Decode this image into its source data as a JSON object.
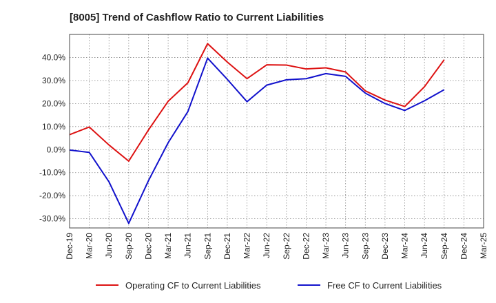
{
  "chart_data": {
    "type": "line",
    "title": "[8005]  Trend of Cashflow Ratio to Current Liabilities",
    "xlabel": "",
    "ylabel": "",
    "x": [
      "Dec-19",
      "Mar-20",
      "Jun-20",
      "Sep-20",
      "Dec-20",
      "Mar-21",
      "Jun-21",
      "Sep-21",
      "Dec-21",
      "Mar-22",
      "Jun-22",
      "Sep-22",
      "Dec-22",
      "Mar-23",
      "Jun-23",
      "Sep-23",
      "Dec-23",
      "Mar-24",
      "Jun-24",
      "Sep-24",
      "Dec-24",
      "Mar-25"
    ],
    "ylim": [
      -34,
      50
    ],
    "yticks": [
      -30,
      -20,
      -10,
      0,
      10,
      20,
      30,
      40
    ],
    "ytick_labels": [
      "-30.0%",
      "-20.0%",
      "-10.0%",
      "0.0%",
      "10.0%",
      "20.0%",
      "30.0%",
      "40.0%"
    ],
    "grid": true,
    "legend_position": "bottom",
    "series": [
      {
        "name": "Operating CF to Current Liabilities",
        "color": "#dd1111",
        "values": [
          6.5,
          9.8,
          2.0,
          -5.0,
          8.5,
          21.0,
          29.0,
          46.0,
          38.0,
          30.8,
          36.8,
          36.7,
          35.0,
          35.5,
          33.7,
          25.5,
          21.5,
          18.7,
          27.3,
          39.0,
          null,
          null
        ]
      },
      {
        "name": "Free CF to Current Liabilities",
        "color": "#1111cc",
        "values": [
          -0.2,
          -1.2,
          -14.0,
          -32.0,
          -13.5,
          3.0,
          16.5,
          39.7,
          30.5,
          20.8,
          28.0,
          30.3,
          30.8,
          33.0,
          31.8,
          24.5,
          20.0,
          17.0,
          21.2,
          26.0,
          null,
          null
        ]
      }
    ]
  }
}
